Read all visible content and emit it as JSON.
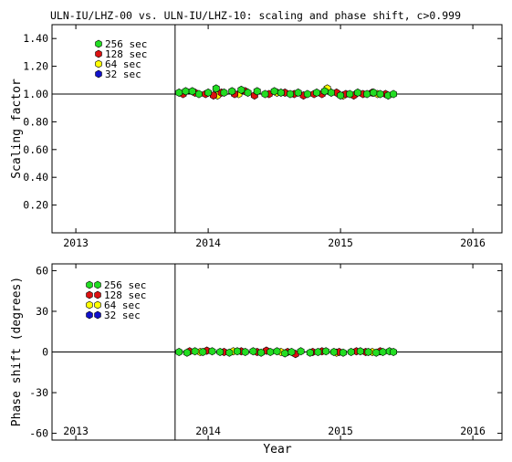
{
  "title": "ULN-IU/LHZ-00 vs. ULN-IU/LHZ-10: scaling and phase shift, c>0.999",
  "xlabel": "Year",
  "legend_labels": [
    "256 sec",
    "128 sec",
    " 64 sec",
    " 32 sec"
  ],
  "series_colors": {
    "256 sec": "#22dd22",
    "128 sec": "#dd1111",
    "64 sec": "#ffff00",
    "32 sec": "#1111cc"
  },
  "chart_data": [
    {
      "type": "scatter",
      "ylabel": "Scaling factor",
      "xlim": [
        2012.82,
        2016.22
      ],
      "ylim": [
        0.0,
        1.5
      ],
      "x_ticks": [
        2013,
        2014,
        2015,
        2016
      ],
      "x_tick_labels": [
        "2013",
        "2014",
        "2015",
        "2016"
      ],
      "y_ticks": [
        0.2,
        0.4,
        0.6,
        0.8,
        1.0,
        1.2,
        1.4
      ],
      "y_tick_labels": [
        "0.20",
        "0.40",
        "0.60",
        "0.80",
        "1.00",
        "1.20",
        "1.40"
      ],
      "reference_y": 1.0,
      "reference_x": 2013.75,
      "legend": "top-left",
      "series": [
        {
          "name": "256 sec",
          "x": [
            2013.78,
            2013.83,
            2013.88,
            2013.93,
            2014.0,
            2014.06,
            2014.12,
            2014.18,
            2014.25,
            2014.3,
            2014.37,
            2014.43,
            2014.5,
            2014.55,
            2014.62,
            2014.68,
            2014.75,
            2014.82,
            2014.88,
            2014.93,
            2015.0,
            2015.07,
            2015.13,
            2015.2,
            2015.25,
            2015.3,
            2015.36,
            2015.4
          ],
          "y": [
            1.01,
            1.02,
            1.02,
            1.0,
            1.01,
            1.04,
            1.01,
            1.02,
            1.03,
            1.01,
            1.02,
            1.0,
            1.02,
            1.01,
            1.0,
            1.01,
            1.0,
            1.01,
            1.02,
            1.01,
            0.99,
            1.0,
            1.01,
            1.0,
            1.01,
            1.0,
            0.99,
            1.0
          ]
        },
        {
          "name": "128 sec",
          "x": [
            2013.81,
            2013.9,
            2013.98,
            2014.04,
            2014.1,
            2014.2,
            2014.28,
            2014.35,
            2014.46,
            2014.58,
            2014.65,
            2014.72,
            2014.8,
            2014.86,
            2014.97,
            2015.04,
            2015.1,
            2015.17,
            2015.24,
            2015.34
          ],
          "y": [
            1.0,
            1.01,
            1.0,
            0.99,
            1.01,
            1.0,
            1.02,
            0.99,
            1.0,
            1.01,
            1.0,
            0.99,
            1.0,
            1.0,
            1.01,
            1.0,
            0.99,
            1.0,
            1.01,
            1.0
          ]
        },
        {
          "name": "64 sec",
          "x": [
            2014.07,
            2014.23,
            2014.52,
            2014.9,
            2015.02,
            2015.28
          ],
          "y": [
            0.99,
            1.0,
            1.01,
            1.04,
            0.99,
            1.0
          ]
        },
        {
          "name": "32 sec",
          "x": [],
          "y": []
        }
      ]
    },
    {
      "type": "scatter",
      "ylabel": "Phase shift (degrees)",
      "xlim": [
        2012.82,
        2016.22
      ],
      "ylim": [
        -65,
        65
      ],
      "x_ticks": [
        2013,
        2014,
        2015,
        2016
      ],
      "x_tick_labels": [
        "2013",
        "2014",
        "2015",
        "2016"
      ],
      "y_ticks": [
        -60,
        -30,
        0,
        30,
        60
      ],
      "y_tick_labels": [
        "-60",
        "-30",
        "0",
        "30",
        "60"
      ],
      "reference_y": 0,
      "reference_x": 2013.75,
      "legend": "top-left",
      "series": [
        {
          "name": "256 sec",
          "x": [
            2013.78,
            2013.84,
            2013.9,
            2013.96,
            2014.03,
            2014.09,
            2014.16,
            2014.22,
            2014.28,
            2014.34,
            2014.4,
            2014.47,
            2014.52,
            2014.58,
            2014.63,
            2014.7,
            2014.77,
            2014.83,
            2014.89,
            2014.95,
            2015.02,
            2015.08,
            2015.15,
            2015.21,
            2015.27,
            2015.32,
            2015.37,
            2015.4
          ],
          "y": [
            0.0,
            -0.5,
            0.5,
            0.0,
            0.5,
            0.0,
            -0.5,
            0.5,
            0.0,
            0.5,
            -0.5,
            0.0,
            0.5,
            -1.0,
            0.0,
            0.5,
            -0.5,
            0.0,
            0.5,
            0.0,
            -0.5,
            0.0,
            0.5,
            0.0,
            -0.5,
            0.0,
            0.5,
            0.0
          ]
        },
        {
          "name": "128 sec",
          "x": [
            2013.86,
            2013.99,
            2014.12,
            2014.25,
            2014.37,
            2014.44,
            2014.6,
            2014.66,
            2014.79,
            2014.86,
            2014.99,
            2015.12,
            2015.19,
            2015.3
          ],
          "y": [
            0.5,
            1.0,
            0.0,
            0.5,
            0.0,
            1.0,
            0.0,
            -1.5,
            0.0,
            0.5,
            0.0,
            0.5,
            0.0,
            0.5
          ]
        },
        {
          "name": "64 sec",
          "x": [
            2013.94,
            2014.19,
            2014.55,
            2014.97,
            2015.24
          ],
          "y": [
            0.0,
            0.5,
            0.0,
            -0.5,
            0.0
          ]
        },
        {
          "name": "32 sec",
          "x": [],
          "y": []
        }
      ]
    }
  ]
}
